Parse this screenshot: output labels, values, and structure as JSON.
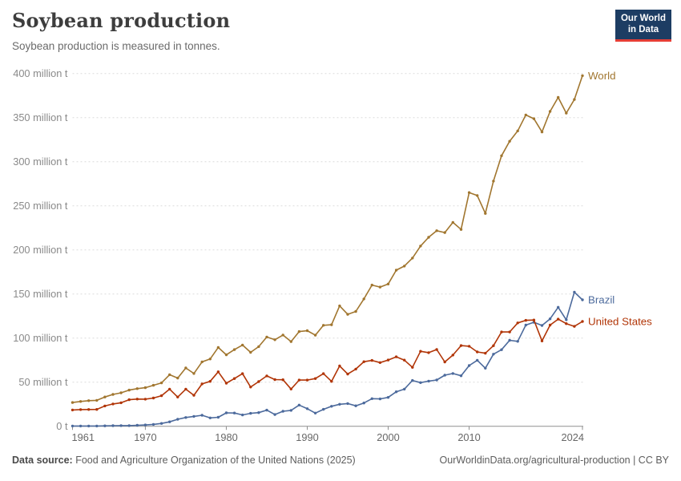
{
  "header": {
    "title": "Soybean production",
    "subtitle": "Soybean production is measured in tonnes.",
    "logo": {
      "line1": "Our World",
      "line2": "in Data",
      "bg_color": "#1d3d63",
      "accent_color": "#e63e36",
      "text_color": "#ffffff"
    }
  },
  "footer": {
    "source_label": "Data source:",
    "source_text": " Food and Agriculture Organization of the United Nations (2025)",
    "link_text": "OurWorldinData.org/agricultural-production | CC BY"
  },
  "chart_data": {
    "type": "line",
    "title": "Soybean production",
    "subtitle": "Soybean production is measured in tonnes.",
    "unit": "million tonnes",
    "xlim": [
      1961,
      2024
    ],
    "ylim": [
      0,
      400
    ],
    "grid": true,
    "legend_position": "end-of-line",
    "xticks": [
      1961,
      1970,
      1980,
      1990,
      2000,
      2010,
      2024
    ],
    "yticks": [
      {
        "value": 0,
        "label": "0 t"
      },
      {
        "value": 50,
        "label": "50 million t"
      },
      {
        "value": 100,
        "label": "100 million t"
      },
      {
        "value": 150,
        "label": "150 million t"
      },
      {
        "value": 200,
        "label": "200 million t"
      },
      {
        "value": 250,
        "label": "250 million t"
      },
      {
        "value": 300,
        "label": "300 million t"
      },
      {
        "value": 350,
        "label": "350 million t"
      },
      {
        "value": 400,
        "label": "400 million t"
      }
    ],
    "x": [
      1961,
      1962,
      1963,
      1964,
      1965,
      1966,
      1967,
      1968,
      1969,
      1970,
      1971,
      1972,
      1973,
      1974,
      1975,
      1976,
      1977,
      1978,
      1979,
      1980,
      1981,
      1982,
      1983,
      1984,
      1985,
      1986,
      1987,
      1988,
      1989,
      1990,
      1991,
      1992,
      1993,
      1994,
      1995,
      1996,
      1997,
      1998,
      1999,
      2000,
      2001,
      2002,
      2003,
      2004,
      2005,
      2006,
      2007,
      2008,
      2009,
      2010,
      2011,
      2012,
      2013,
      2014,
      2015,
      2016,
      2017,
      2018,
      2019,
      2020,
      2021,
      2022,
      2023,
      2024
    ],
    "series": [
      {
        "name": "World",
        "color": "#a1762f",
        "values": [
          26.9,
          28.1,
          29.0,
          29.4,
          33.2,
          36.1,
          37.9,
          41.0,
          42.6,
          43.7,
          46.5,
          49.2,
          58.5,
          54.6,
          66.1,
          59.8,
          73.0,
          76.3,
          89.4,
          81.0,
          86.9,
          92.1,
          83.8,
          90.3,
          101.2,
          98.1,
          103.5,
          96.0,
          107.4,
          108.4,
          103.3,
          114.5,
          115.1,
          136.5,
          126.9,
          130.2,
          144.4,
          160.1,
          157.8,
          161.3,
          177.0,
          181.6,
          190.7,
          204.4,
          214.3,
          221.7,
          219.6,
          231.2,
          223.2,
          265.0,
          261.6,
          241.4,
          278.0,
          306.7,
          323.2,
          334.9,
          353.0,
          348.7,
          333.7,
          357.0,
          372.9,
          355.1,
          370.5,
          397.5
        ]
      },
      {
        "name": "Brazil",
        "color": "#4c6a9c",
        "values": [
          0.3,
          0.3,
          0.3,
          0.3,
          0.5,
          0.6,
          0.7,
          0.7,
          1.1,
          1.5,
          2.1,
          3.2,
          5.0,
          7.9,
          9.9,
          11.2,
          12.5,
          9.5,
          10.2,
          15.2,
          15.0,
          12.8,
          14.6,
          15.5,
          18.3,
          13.3,
          17.0,
          18.0,
          24.0,
          19.9,
          14.9,
          19.2,
          22.6,
          24.9,
          25.7,
          23.2,
          26.4,
          31.3,
          31.0,
          32.7,
          39.1,
          42.1,
          51.9,
          49.5,
          51.2,
          52.5,
          57.9,
          59.8,
          57.3,
          68.8,
          74.8,
          65.8,
          81.7,
          86.8,
          97.5,
          96.3,
          114.7,
          117.9,
          114.3,
          121.8,
          134.9,
          120.7,
          152.1,
          143.4
        ]
      },
      {
        "name": "United States",
        "color": "#b13507",
        "values": [
          18.5,
          18.9,
          19.0,
          19.1,
          23.0,
          25.3,
          26.6,
          30.1,
          30.8,
          30.7,
          32.0,
          34.6,
          42.1,
          33.1,
          42.1,
          35.1,
          48.0,
          50.9,
          61.7,
          48.8,
          54.1,
          59.6,
          44.5,
          50.6,
          57.1,
          52.9,
          52.7,
          42.2,
          52.4,
          52.4,
          54.1,
          59.6,
          50.9,
          68.4,
          59.2,
          64.8,
          73.2,
          74.6,
          72.2,
          75.1,
          78.7,
          75.0,
          66.8,
          85.0,
          83.5,
          87.0,
          72.9,
          80.7,
          91.5,
          90.7,
          84.3,
          82.8,
          91.4,
          106.9,
          106.9,
          117.2,
          120.1,
          120.5,
          96.7,
          114.7,
          121.5,
          116.4,
          113.3,
          118.8
        ]
      }
    ],
    "colors": {
      "gridline": "#dcdcdc",
      "axis": "#8f8f8f",
      "y_tick_label": "#8a8a8a",
      "x_tick_label": "#676767"
    }
  }
}
